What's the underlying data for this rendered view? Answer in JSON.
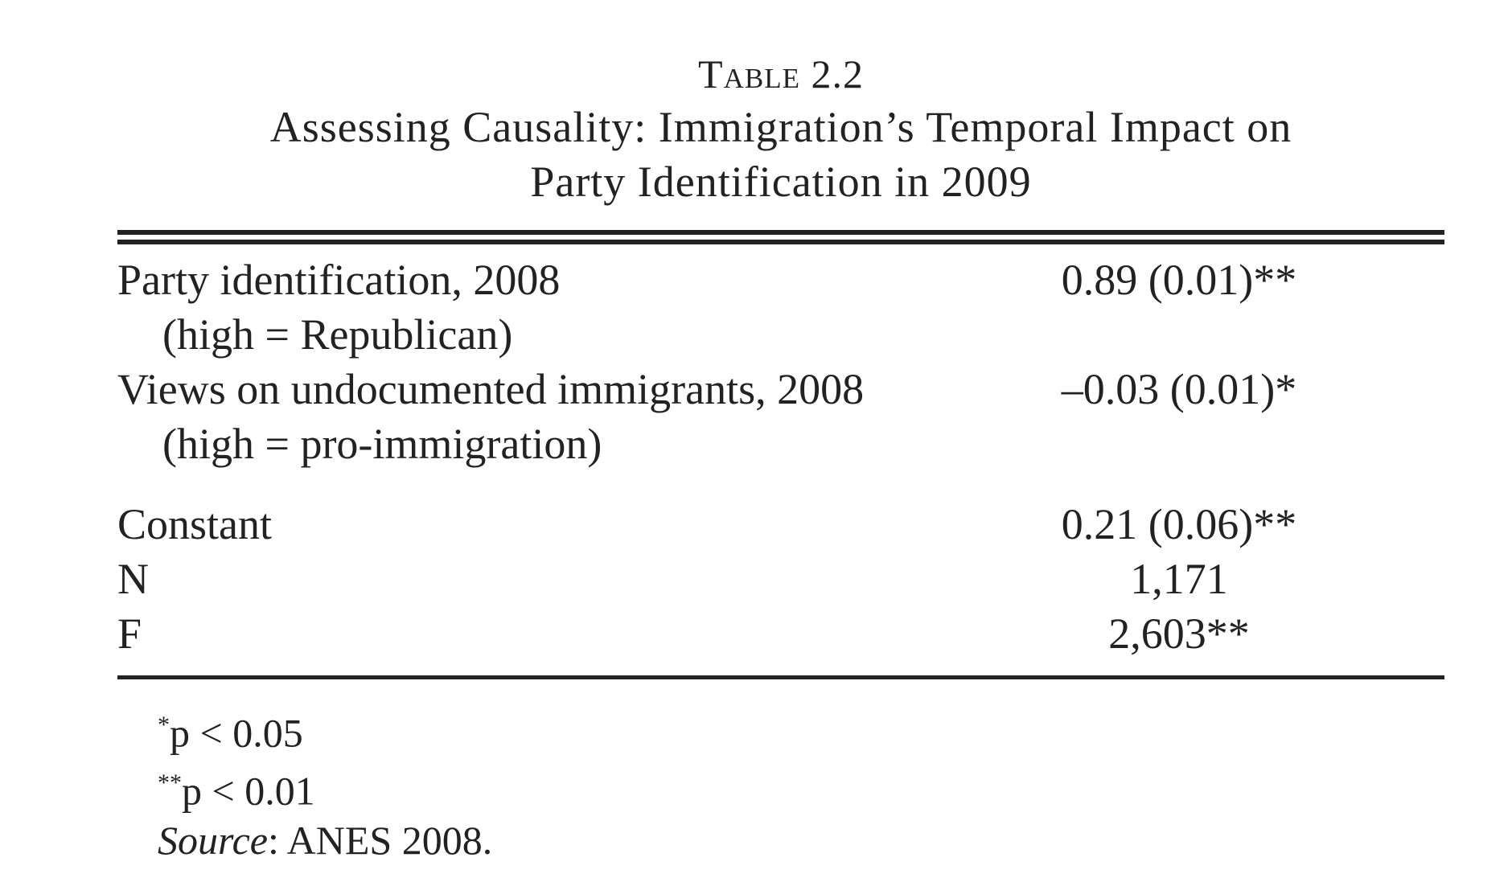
{
  "table": {
    "label": "Table 2.2",
    "title_line1": "Assessing Causality: Immigration’s Temporal Impact on",
    "title_line2": "Party Identification in 2009"
  },
  "rows": [
    {
      "label": "Party identification, 2008",
      "sublabel": "(high = Republican)",
      "value": "0.89 (0.01)**"
    },
    {
      "label": "Views on undocumented immigrants, 2008",
      "sublabel": "(high = pro-immigration)",
      "value": "–0.03 (0.01)*"
    },
    {
      "label": "Constant",
      "value": "0.21 (0.06)**"
    },
    {
      "label": "N",
      "value": "1,171"
    },
    {
      "label": "F",
      "value": "2,603**"
    }
  ],
  "notes": {
    "note1_marker": "*",
    "note1_text": "p < 0.05",
    "note2_marker": "**",
    "note2_text": "p < 0.01",
    "source_label": "Source",
    "source_text": ": ANES 2008."
  }
}
